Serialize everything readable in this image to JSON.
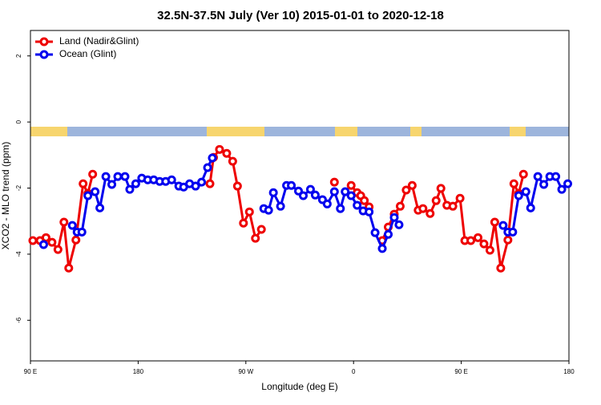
{
  "chart_data": {
    "type": "line",
    "title": "32.5N-37.5N July (Ver 10)   2015-01-01 to 2020-12-18",
    "x_label": "Longitude (deg E)",
    "y_label": "XCO2 - MLO trend (ppm)",
    "xlim": [
      90,
      540
    ],
    "ylim": [
      -7.23,
      2.77
    ],
    "xticks": [
      {
        "value": 90,
        "label": "90 E"
      },
      180,
      {
        "value": 270,
        "label": "90 W"
      },
      {
        "value": 360,
        "label": "0"
      },
      {
        "value": 450,
        "label": "90 E"
      },
      {
        "value": 540,
        "label": "180"
      }
    ],
    "yticks": [
      2,
      0,
      -2,
      -4,
      -6
    ],
    "legend": "top-left",
    "series": [
      {
        "name": "Land (Nadir&Glint)",
        "color": "#ee0000",
        "x": [
          92,
          98,
          103,
          108,
          113,
          118,
          122,
          128,
          134,
          138,
          142,
          null,
          240,
          243,
          248,
          254,
          259,
          263,
          268,
          273,
          278,
          283,
          null,
          344,
          null,
          358,
          363,
          366,
          369,
          373,
          null,
          384,
          389,
          394,
          399,
          404,
          409,
          414,
          418,
          424,
          429,
          433,
          438,
          443,
          449,
          453,
          458,
          464,
          469,
          474,
          478,
          483,
          489,
          494,
          498,
          502
        ],
        "values": [
          -3.59,
          -3.59,
          -3.5,
          -3.64,
          -3.86,
          -3.03,
          -4.42,
          -3.57,
          -1.87,
          -2.16,
          -1.58,
          null,
          -1.87,
          -1.07,
          -0.83,
          -0.95,
          -1.19,
          -1.94,
          -3.06,
          -2.72,
          -3.52,
          -3.25,
          null,
          -1.82,
          null,
          -1.92,
          -2.14,
          -2.23,
          -2.38,
          -2.57,
          null,
          -3.59,
          -3.18,
          -2.79,
          -2.55,
          -2.06,
          -1.92,
          -2.67,
          -2.62,
          -2.77,
          -2.38,
          -2.01,
          -2.52,
          -2.55,
          -2.31,
          -3.59,
          -3.59,
          -3.5,
          -3.69,
          -3.88,
          -3.03,
          -4.42,
          -3.57,
          -1.87,
          -2.16,
          -1.58
        ]
      },
      {
        "name": "Ocean (Glint)",
        "color": "#0000ee",
        "x": [
          101,
          null,
          125,
          129,
          133,
          138,
          144,
          148,
          153,
          158,
          163,
          169,
          173,
          178,
          183,
          188,
          193,
          198,
          203,
          208,
          214,
          218,
          223,
          228,
          233,
          238,
          242,
          null,
          285,
          289,
          293,
          299,
          304,
          308,
          314,
          318,
          324,
          328,
          334,
          338,
          344,
          349,
          353,
          358,
          363,
          368,
          373,
          378,
          384,
          389,
          394,
          398,
          null,
          485,
          489,
          493,
          498,
          504,
          508,
          514,
          519,
          524,
          529,
          534,
          539
        ],
        "values": [
          -3.71,
          null,
          -3.13,
          -3.33,
          -3.33,
          -2.23,
          -2.11,
          -2.6,
          -1.65,
          -1.89,
          -1.65,
          -1.65,
          -2.04,
          -1.87,
          -1.7,
          -1.75,
          -1.75,
          -1.8,
          -1.8,
          -1.75,
          -1.94,
          -1.97,
          -1.87,
          -1.94,
          -1.82,
          -1.38,
          -1.09,
          null,
          -2.62,
          -2.67,
          -2.14,
          -2.55,
          -1.92,
          -1.92,
          -2.09,
          -2.23,
          -2.04,
          -2.21,
          -2.35,
          -2.48,
          -2.11,
          -2.62,
          -2.11,
          -2.23,
          -2.52,
          -2.69,
          -2.72,
          -3.35,
          -3.83,
          -3.4,
          -2.89,
          -3.11,
          null,
          -3.13,
          -3.33,
          -3.33,
          -2.23,
          -2.11,
          -2.6,
          -1.65,
          -1.89,
          -1.65,
          -1.65,
          -2.04,
          -1.87
        ]
      }
    ]
  }
}
